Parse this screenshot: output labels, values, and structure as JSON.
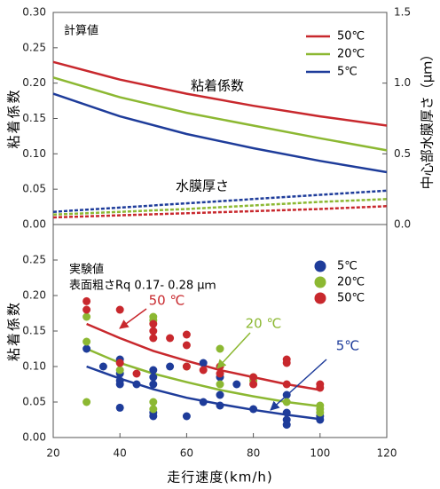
{
  "chart_data": [
    {
      "type": "line",
      "title": "計算値",
      "ylabel": "粘着係数",
      "y2label": "中心部水膜厚さ（μｍ）",
      "annotations": [
        "粘着係数",
        "水膜厚さ"
      ],
      "x": [
        20,
        40,
        60,
        80,
        100,
        120
      ],
      "xlim": [
        20,
        120
      ],
      "ylim": [
        0,
        0.3
      ],
      "yticks": [
        {
          "value": 0,
          "label": "0.00"
        },
        {
          "value": 0.05,
          "label": "0.05"
        },
        {
          "value": 0.1,
          "label": "0.10"
        },
        {
          "value": 0.15,
          "label": "0.15"
        },
        {
          "value": 0.2,
          "label": "0.20"
        },
        {
          "value": 0.25,
          "label": "0.25"
        },
        {
          "value": 0.3,
          "label": "0.30"
        }
      ],
      "y2lim": [
        0,
        1.5
      ],
      "y2ticks": [
        {
          "value": 0,
          "label": "0.0"
        },
        {
          "value": 0.5,
          "label": "0.5"
        },
        {
          "value": 1,
          "label": "1.0"
        },
        {
          "value": 1.5,
          "label": "1.5"
        }
      ],
      "series": [
        {
          "name": "50℃",
          "color": "#c8282d",
          "values": [
            0.23,
            0.205,
            0.185,
            0.168,
            0.153,
            0.14
          ]
        },
        {
          "name": "20℃",
          "color": "#8cb832",
          "values": [
            0.208,
            0.18,
            0.158,
            0.14,
            0.122,
            0.105
          ]
        },
        {
          "name": "5℃",
          "color": "#1e3c9a",
          "values": [
            0.185,
            0.153,
            0.128,
            0.108,
            0.09,
            0.074
          ]
        },
        {
          "color": "#1e3c9a",
          "axis": "y2",
          "style": "dashed",
          "values": [
            0.09,
            0.12,
            0.15,
            0.18,
            0.21,
            0.24
          ]
        },
        {
          "color": "#8cb832",
          "axis": "y2",
          "style": "dashed",
          "values": [
            0.07,
            0.09,
            0.11,
            0.135,
            0.16,
            0.18
          ]
        },
        {
          "color": "#c8282d",
          "axis": "y2",
          "style": "dashed",
          "values": [
            0.05,
            0.065,
            0.08,
            0.095,
            0.11,
            0.13
          ]
        }
      ]
    },
    {
      "type": "scatter",
      "title": "実験値",
      "subtitle": "表面粗さRq  0.17- 0.28 μｍ",
      "ylabel": "粘着係数",
      "xlabel": "走行速度(km/h)",
      "annotations": [
        "50 ℃",
        "20 ℃",
        "5℃"
      ],
      "xlim": [
        20,
        120
      ],
      "xticks": [
        20,
        40,
        60,
        80,
        100,
        120
      ],
      "ylim": [
        0,
        0.3
      ],
      "yticks": [
        {
          "value": 0,
          "label": "0.00"
        },
        {
          "value": 0.05,
          "label": "0.05"
        },
        {
          "value": 0.1,
          "label": "0.10"
        },
        {
          "value": 0.15,
          "label": "0.15"
        },
        {
          "value": 0.2,
          "label": "0.20"
        },
        {
          "value": 0.25,
          "label": "0.25"
        }
      ],
      "series": [
        {
          "name": "5℃",
          "color": "#1e3c9a",
          "x": [
            30,
            35,
            40,
            40,
            40,
            40,
            40,
            45,
            50,
            50,
            50,
            50,
            50,
            55,
            60,
            65,
            65,
            70,
            70,
            70,
            75,
            80,
            90,
            90,
            90,
            90,
            100,
            100
          ],
          "values": [
            0.125,
            0.1,
            0.11,
            0.09,
            0.08,
            0.075,
            0.042,
            0.075,
            0.095,
            0.085,
            0.075,
            0.035,
            0.03,
            0.1,
            0.03,
            0.105,
            0.05,
            0.085,
            0.06,
            0.045,
            0.075,
            0.04,
            0.06,
            0.035,
            0.025,
            0.018,
            0.03,
            0.025
          ]
        },
        {
          "name": "20℃",
          "color": "#8cb832",
          "x": [
            30,
            30,
            30,
            40,
            50,
            50,
            50,
            50,
            60,
            70,
            70,
            80,
            80,
            90,
            100,
            100,
            100
          ],
          "values": [
            0.17,
            0.135,
            0.05,
            0.095,
            0.17,
            0.165,
            0.05,
            0.04,
            0.1,
            0.125,
            0.075,
            0.085,
            0.08,
            0.05,
            0.045,
            0.04,
            0.035
          ]
        },
        {
          "name": "50℃",
          "color": "#c8282d",
          "x": [
            30,
            30,
            40,
            40,
            45,
            50,
            50,
            50,
            55,
            60,
            60,
            60,
            65,
            70,
            70,
            80,
            80,
            90,
            90,
            90,
            100,
            100
          ],
          "values": [
            0.192,
            0.18,
            0.18,
            0.105,
            0.09,
            0.16,
            0.15,
            0.14,
            0.14,
            0.145,
            0.13,
            0.1,
            0.095,
            0.1,
            0.09,
            0.085,
            0.075,
            0.11,
            0.105,
            0.075,
            0.075,
            0.07
          ]
        }
      ],
      "fits": [
        {
          "color": "#c8282d",
          "x": [
            30,
            40,
            50,
            60,
            70,
            80,
            90,
            100
          ],
          "values": [
            0.16,
            0.14,
            0.122,
            0.108,
            0.095,
            0.085,
            0.075,
            0.067
          ]
        },
        {
          "color": "#8cb832",
          "x": [
            30,
            40,
            50,
            60,
            70,
            80,
            90,
            100
          ],
          "values": [
            0.125,
            0.105,
            0.09,
            0.078,
            0.067,
            0.058,
            0.05,
            0.044
          ]
        },
        {
          "color": "#1e3c9a",
          "x": [
            30,
            40,
            50,
            60,
            70,
            80,
            90,
            100
          ],
          "values": [
            0.1,
            0.083,
            0.068,
            0.056,
            0.047,
            0.039,
            0.032,
            0.026
          ]
        }
      ]
    }
  ]
}
